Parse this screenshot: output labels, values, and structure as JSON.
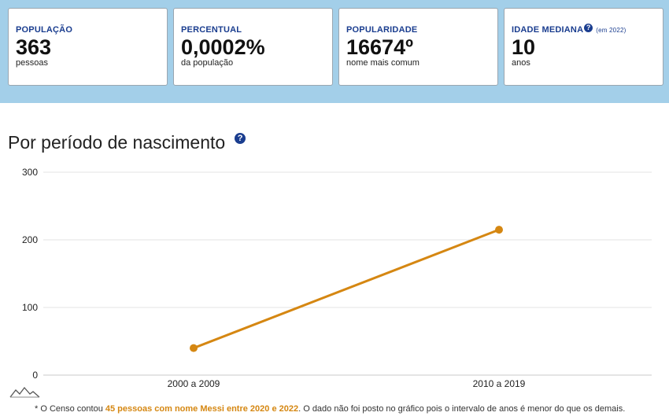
{
  "stats": [
    {
      "label": "POPULAÇÃO",
      "value": "363",
      "sub": "pessoas"
    },
    {
      "label": "PERCENTUAL",
      "value": "0,0002%",
      "sub": "da população"
    },
    {
      "label": "POPULARIDADE",
      "value": "16674º",
      "sub": "nome mais comum"
    },
    {
      "label": "IDADE MEDIANA",
      "value": "10",
      "sub": "anos",
      "help": "?",
      "note": "(em 2022)"
    }
  ],
  "section": {
    "title": "Por período de nascimento",
    "help": "?"
  },
  "chart_data": {
    "type": "line",
    "categories": [
      "2000 a 2009",
      "2010 a 2019"
    ],
    "series": [
      {
        "values": [
          40,
          215
        ],
        "color": "#d58712"
      }
    ],
    "ylim": [
      0,
      300
    ],
    "yticks": [
      "0",
      "100",
      "200",
      "300"
    ],
    "grid": true,
    "legend": "none"
  },
  "footnote": {
    "mark": "*",
    "before": " O Censo contou ",
    "highlight": "45 pessoas com nome Messi entre 2020 e 2022",
    "after": ". O dado não foi posto no gráfico pois o intervalo de anos é menor do que os demais."
  },
  "colors": {
    "band": "#a3cfe9",
    "label": "#1a3d8f",
    "series": "#d58712",
    "grid": "#e3e3e3"
  },
  "icons": {
    "help": "help-circle-icon",
    "logo": "mountain-logo-icon"
  }
}
